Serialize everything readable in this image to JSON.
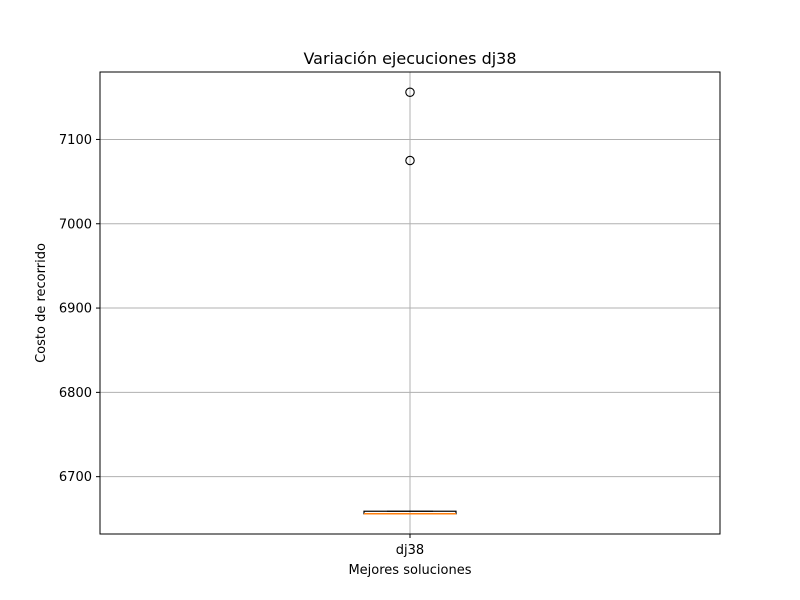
{
  "chart_data": {
    "type": "box",
    "title": "Variación ejecuciones dj38",
    "xlabel": "Mejores soluciones",
    "ylabel": "Costo de recorrido",
    "categories": [
      "dj38"
    ],
    "ylim": [
      6632,
      7180
    ],
    "yticks": [
      6700,
      6800,
      6900,
      7000,
      7100
    ],
    "grid": true,
    "boxes": [
      {
        "name": "dj38",
        "whisker_low": 6656,
        "q1": 6656,
        "median": 6656,
        "q3": 6659,
        "whisker_high": 6659,
        "outliers": [
          7075,
          7156
        ]
      }
    ],
    "colors": {
      "box": "#000000",
      "median": "#ff7f0e",
      "grid": "#b0b0b0"
    }
  }
}
